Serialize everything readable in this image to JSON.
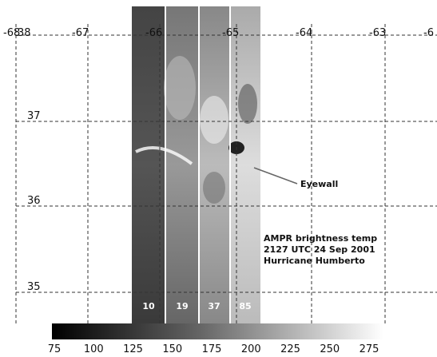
{
  "map": {
    "lon_labels": [
      "-68",
      "-67",
      "-66",
      "-65",
      "-64",
      "-63",
      "-6"
    ],
    "lat_labels": [
      "38",
      "37",
      "36",
      "35"
    ],
    "annotation": "Eyewall",
    "caption": [
      "AMPR brightness temp",
      "2127 UTC 24 Sep 2001",
      "Hurricane Humberto"
    ],
    "channels": [
      "10",
      "19",
      "37",
      "85"
    ],
    "colorbar_ticks": [
      75,
      100,
      125,
      150,
      175,
      200,
      225,
      250,
      275
    ]
  }
}
